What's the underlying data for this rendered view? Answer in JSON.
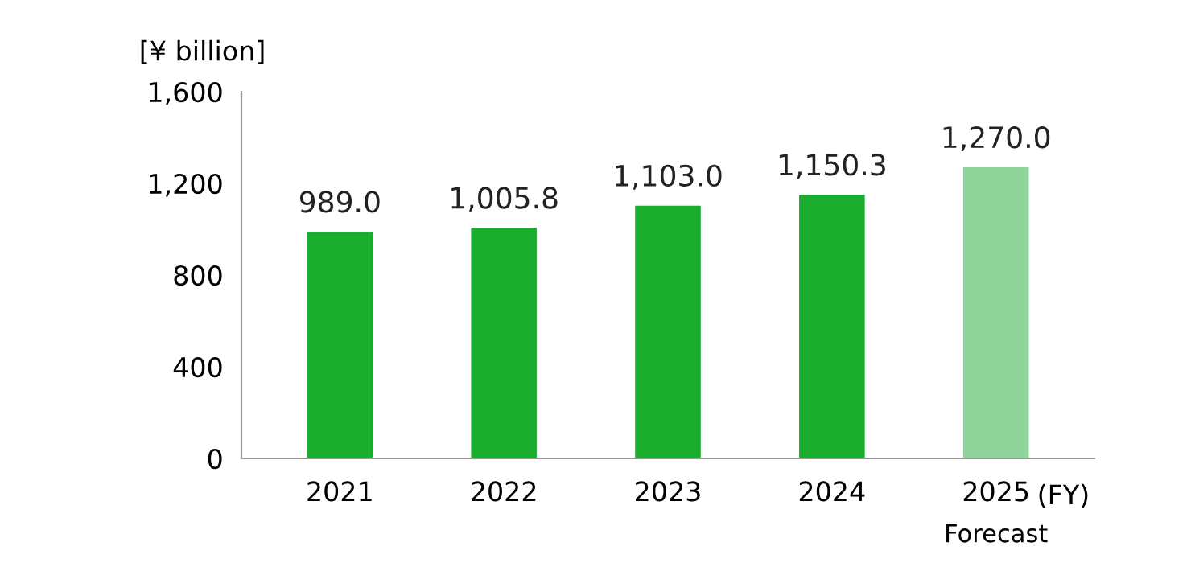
{
  "chart_data": {
    "type": "bar",
    "ylabel": "[¥ billion]",
    "xlabel": "(FY)",
    "categories": [
      "2021",
      "2022",
      "2023",
      "2024",
      "2025"
    ],
    "values": [
      989.0,
      1005.8,
      1103.0,
      1150.3,
      1270.0
    ],
    "value_labels": [
      "989.0",
      "1,005.8",
      "1,103.0",
      "1,150.3",
      "1,270.0"
    ],
    "colors": [
      "#1aac2c",
      "#1aac2c",
      "#1aac2c",
      "#1aac2c",
      "#8fd49a"
    ],
    "ylim": [
      0,
      1600
    ],
    "yticks": [
      {
        "value": 0,
        "label": "0"
      },
      {
        "value": 400,
        "label": "400"
      },
      {
        "value": 800,
        "label": "800"
      },
      {
        "value": 1200,
        "label": "1,200"
      },
      {
        "value": 1600,
        "label": "1,600"
      }
    ],
    "annotations": [
      "Forecast"
    ],
    "grid": false
  }
}
